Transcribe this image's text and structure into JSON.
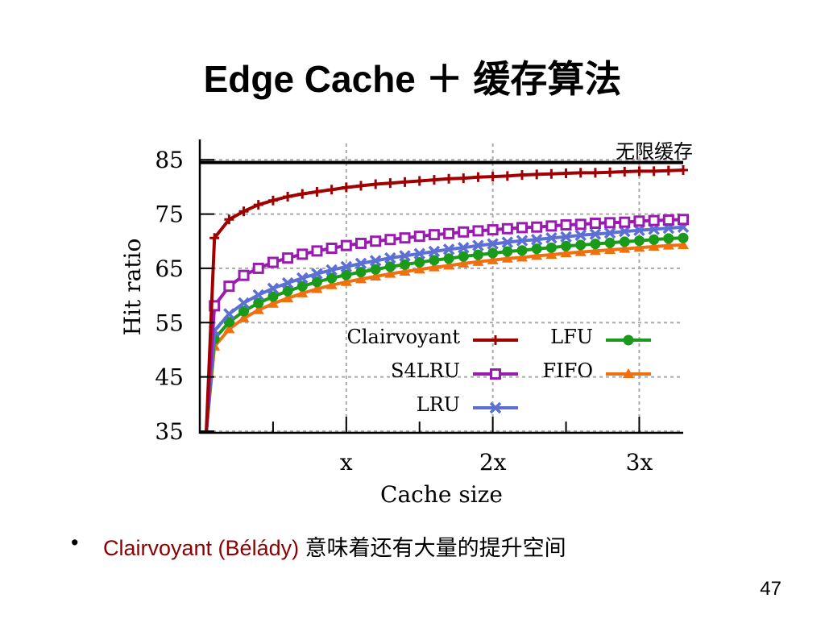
{
  "slide": {
    "title": "Edge Cache ＋  缓存算法",
    "bullet_marker": "•",
    "bullet_highlight": "Clairvoyant (Bélády)",
    "bullet_rest": " 意味着还有大量的提升空间",
    "page_number": "47"
  },
  "chart_data": {
    "type": "line",
    "xlabel": "Cache size",
    "ylabel": "Hit ratio",
    "x_tick_labels": [
      "x",
      "2x",
      "3x"
    ],
    "x_tick_values": [
      1,
      2,
      3
    ],
    "xlim": [
      0,
      3.3
    ],
    "y_ticks": [
      35,
      45,
      55,
      65,
      75,
      85
    ],
    "ylim": [
      35,
      88
    ],
    "grid": true,
    "legend_position": "lower-right inside plot",
    "reference_line": {
      "label": "无限缓存",
      "value": 84.5,
      "color": "#000000"
    },
    "x": [
      0.1,
      0.2,
      0.3,
      0.4,
      0.5,
      0.6,
      0.7,
      0.8,
      0.9,
      1.0,
      1.1,
      1.2,
      1.3,
      1.4,
      1.5,
      1.6,
      1.7,
      1.8,
      1.9,
      2.0,
      2.1,
      2.2,
      2.3,
      2.4,
      2.5,
      2.6,
      2.7,
      2.8,
      2.9,
      3.0,
      3.1,
      3.2,
      3.3
    ],
    "series": [
      {
        "name": "Clairvoyant",
        "color": "#a00000",
        "marker": "plus",
        "values": [
          70.6,
          74.0,
          75.5,
          76.7,
          77.5,
          78.2,
          78.7,
          79.1,
          79.5,
          79.9,
          80.2,
          80.5,
          80.7,
          80.9,
          81.1,
          81.3,
          81.5,
          81.6,
          81.8,
          81.9,
          82.0,
          82.2,
          82.3,
          82.4,
          82.5,
          82.6,
          82.6,
          82.7,
          82.8,
          82.9,
          82.9,
          83.0,
          83.1
        ]
      },
      {
        "name": "S4LRU",
        "color": "#9a1bb0",
        "marker": "square",
        "values": [
          58.1,
          61.7,
          63.7,
          65.0,
          66.1,
          66.9,
          67.6,
          68.2,
          68.7,
          69.2,
          69.6,
          70.0,
          70.3,
          70.6,
          70.9,
          71.2,
          71.4,
          71.7,
          71.9,
          72.1,
          72.3,
          72.5,
          72.6,
          72.8,
          73.0,
          73.1,
          73.3,
          73.4,
          73.5,
          73.7,
          73.8,
          73.9,
          74.0
        ]
      },
      {
        "name": "LRU",
        "color": "#5b6fd4",
        "marker": "x",
        "values": [
          53.5,
          56.6,
          58.6,
          60.1,
          61.3,
          62.3,
          63.2,
          64.0,
          64.7,
          65.3,
          65.9,
          66.4,
          66.9,
          67.3,
          67.7,
          68.1,
          68.5,
          68.8,
          69.2,
          69.5,
          69.8,
          70.1,
          70.3,
          70.6,
          70.8,
          71.1,
          71.3,
          71.5,
          71.8,
          72.0,
          72.2,
          72.4,
          72.6
        ]
      },
      {
        "name": "LFU",
        "color": "#1a9a1a",
        "marker": "circle",
        "values": [
          52.0,
          55.1,
          57.1,
          58.6,
          59.8,
          60.8,
          61.7,
          62.5,
          63.2,
          63.8,
          64.3,
          64.8,
          65.3,
          65.7,
          66.1,
          66.5,
          66.8,
          67.2,
          67.5,
          67.8,
          68.1,
          68.3,
          68.6,
          68.8,
          69.1,
          69.3,
          69.5,
          69.7,
          69.9,
          70.1,
          70.3,
          70.5,
          70.6
        ]
      },
      {
        "name": "FIFO",
        "color": "#f07010",
        "marker": "triangle",
        "values": [
          50.6,
          53.8,
          55.8,
          57.3,
          58.5,
          59.5,
          60.4,
          61.2,
          61.9,
          62.5,
          63.0,
          63.5,
          64.0,
          64.4,
          64.8,
          65.2,
          65.5,
          65.9,
          66.2,
          66.5,
          66.8,
          67.0,
          67.3,
          67.5,
          67.8,
          68.0,
          68.2,
          68.4,
          68.6,
          68.8,
          69.0,
          69.2,
          69.3
        ]
      }
    ]
  }
}
